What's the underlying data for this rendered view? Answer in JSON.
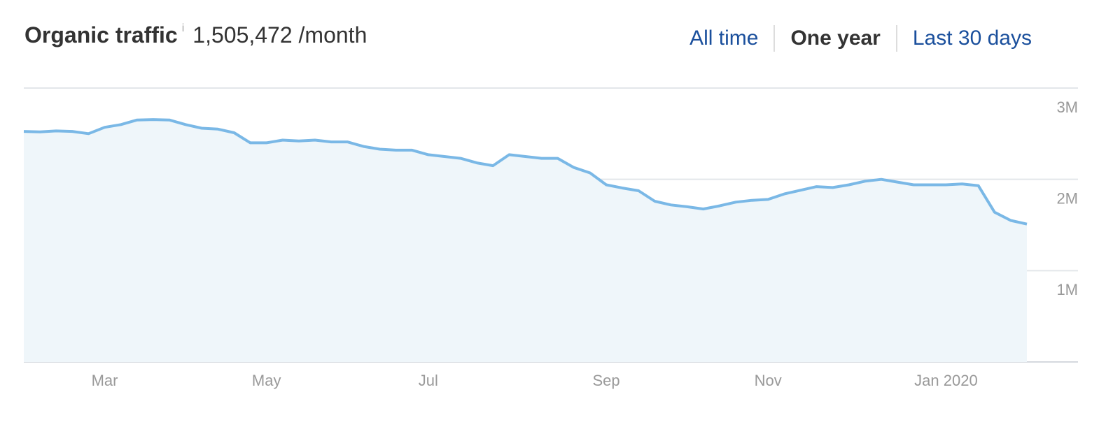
{
  "header": {
    "title": "Organic traffic",
    "info": "i",
    "value": "1,505,472",
    "unit": "/month"
  },
  "tabs": {
    "items": [
      "All time",
      "One year",
      "Last 30 days"
    ],
    "active": 1
  },
  "chart_data": {
    "type": "area",
    "categories": [
      null,
      null,
      null,
      null,
      null,
      "Mar",
      null,
      null,
      null,
      null,
      null,
      null,
      null,
      null,
      null,
      "May",
      null,
      null,
      null,
      null,
      null,
      null,
      null,
      null,
      null,
      "Jul",
      null,
      null,
      null,
      null,
      null,
      null,
      null,
      null,
      null,
      null,
      "Sep",
      null,
      null,
      null,
      null,
      null,
      null,
      null,
      null,
      null,
      "Nov",
      null,
      null,
      null,
      null,
      null,
      null,
      null,
      null,
      null,
      null,
      "Jan 2020",
      null,
      null,
      null,
      null,
      null
    ],
    "values": [
      2525000,
      2520000,
      2530000,
      2525000,
      2500000,
      2570000,
      2600000,
      2650000,
      2655000,
      2650000,
      2600000,
      2560000,
      2550000,
      2510000,
      2400000,
      2400000,
      2430000,
      2420000,
      2430000,
      2410000,
      2410000,
      2360000,
      2330000,
      2320000,
      2320000,
      2270000,
      2250000,
      2230000,
      2180000,
      2150000,
      2270000,
      2250000,
      2230000,
      2230000,
      2130000,
      2070000,
      1940000,
      1905000,
      1875000,
      1760000,
      1720000,
      1700000,
      1675000,
      1710000,
      1750000,
      1770000,
      1780000,
      1840000,
      1880000,
      1920000,
      1910000,
      1940000,
      1980000,
      2000000,
      1970000,
      1940000,
      1940000,
      1940000,
      1950000,
      1930000,
      1640000,
      1550000,
      1510000
    ],
    "color": "#7ab8e6",
    "fill": "#eff6fa",
    "ylim": [
      0,
      3000000
    ],
    "yticks": [
      {
        "value": 1000000,
        "label": "1M"
      },
      {
        "value": 2000000,
        "label": "2M"
      },
      {
        "value": 3000000,
        "label": "3M"
      }
    ],
    "grid": true
  }
}
